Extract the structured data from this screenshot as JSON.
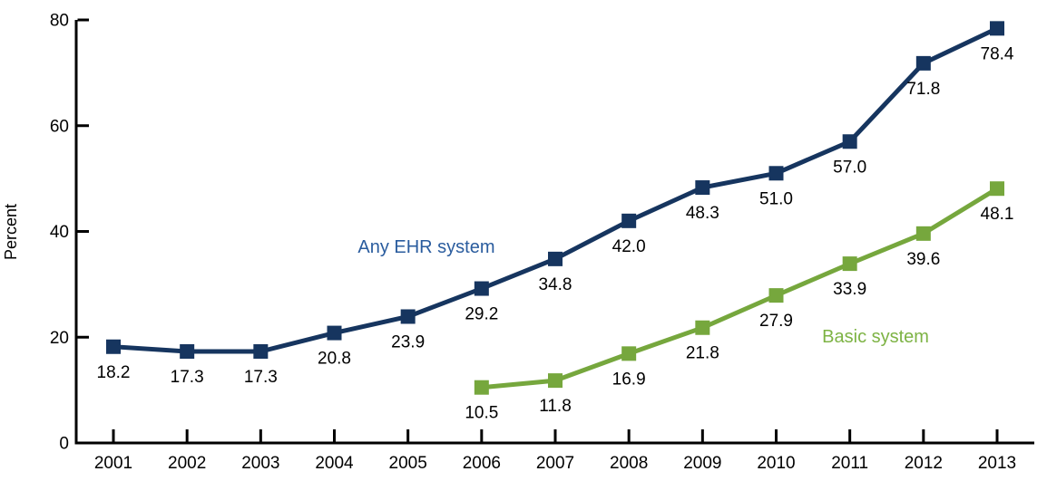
{
  "page": {
    "background": "#ffffff"
  },
  "chart_data": {
    "type": "line",
    "title": "",
    "xlabel": "",
    "ylabel": "Percent",
    "grid": false,
    "legend_position": "inline-annotations",
    "axis_color": "#000000",
    "text_color": "#000000",
    "ylim": [
      0,
      80
    ],
    "y_ticks": [
      0,
      20,
      40,
      60,
      80
    ],
    "y_tick_labels": [
      "0",
      "20",
      "40",
      "60",
      "80"
    ],
    "x_ticks": [
      2001,
      2002,
      2003,
      2004,
      2005,
      2006,
      2007,
      2008,
      2009,
      2010,
      2011,
      2012,
      2013
    ],
    "x_tick_labels": [
      "2001",
      "2002",
      "2003",
      "2004",
      "2005",
      "2006",
      "2007",
      "2008",
      "2009",
      "2010",
      "2011",
      "2012",
      "2013"
    ],
    "series": [
      {
        "name": "Any EHR system",
        "color": "#16355f",
        "marker": "square",
        "x": [
          2001,
          2002,
          2003,
          2004,
          2005,
          2006,
          2007,
          2008,
          2009,
          2010,
          2011,
          2012,
          2013
        ],
        "values": [
          18.2,
          17.3,
          17.3,
          20.8,
          23.9,
          29.2,
          34.8,
          42.0,
          48.3,
          51.0,
          57.0,
          71.8,
          78.4
        ],
        "point_labels": [
          "18.2",
          "17.3",
          "17.3",
          "20.8",
          "23.9",
          "29.2",
          "34.8",
          "42.0",
          "48.3",
          "51.0",
          "57.0",
          "71.8",
          "78.4"
        ]
      },
      {
        "name": "Basic system",
        "color": "#76a73d",
        "marker": "square",
        "x": [
          2006,
          2007,
          2008,
          2009,
          2010,
          2011,
          2012,
          2013
        ],
        "values": [
          10.5,
          11.8,
          16.9,
          21.8,
          27.9,
          33.9,
          39.6,
          48.1
        ],
        "point_labels": [
          "10.5",
          "11.8",
          "16.9",
          "21.8",
          "27.9",
          "33.9",
          "39.6",
          "48.1"
        ]
      }
    ],
    "annotations": [
      {
        "text": "Any EHR system",
        "x": 2005.25,
        "y": 37.2,
        "color": "#2a5c9e"
      },
      {
        "text": "Basic system",
        "x": 2011.35,
        "y": 20.2,
        "color": "#7db344"
      }
    ]
  }
}
